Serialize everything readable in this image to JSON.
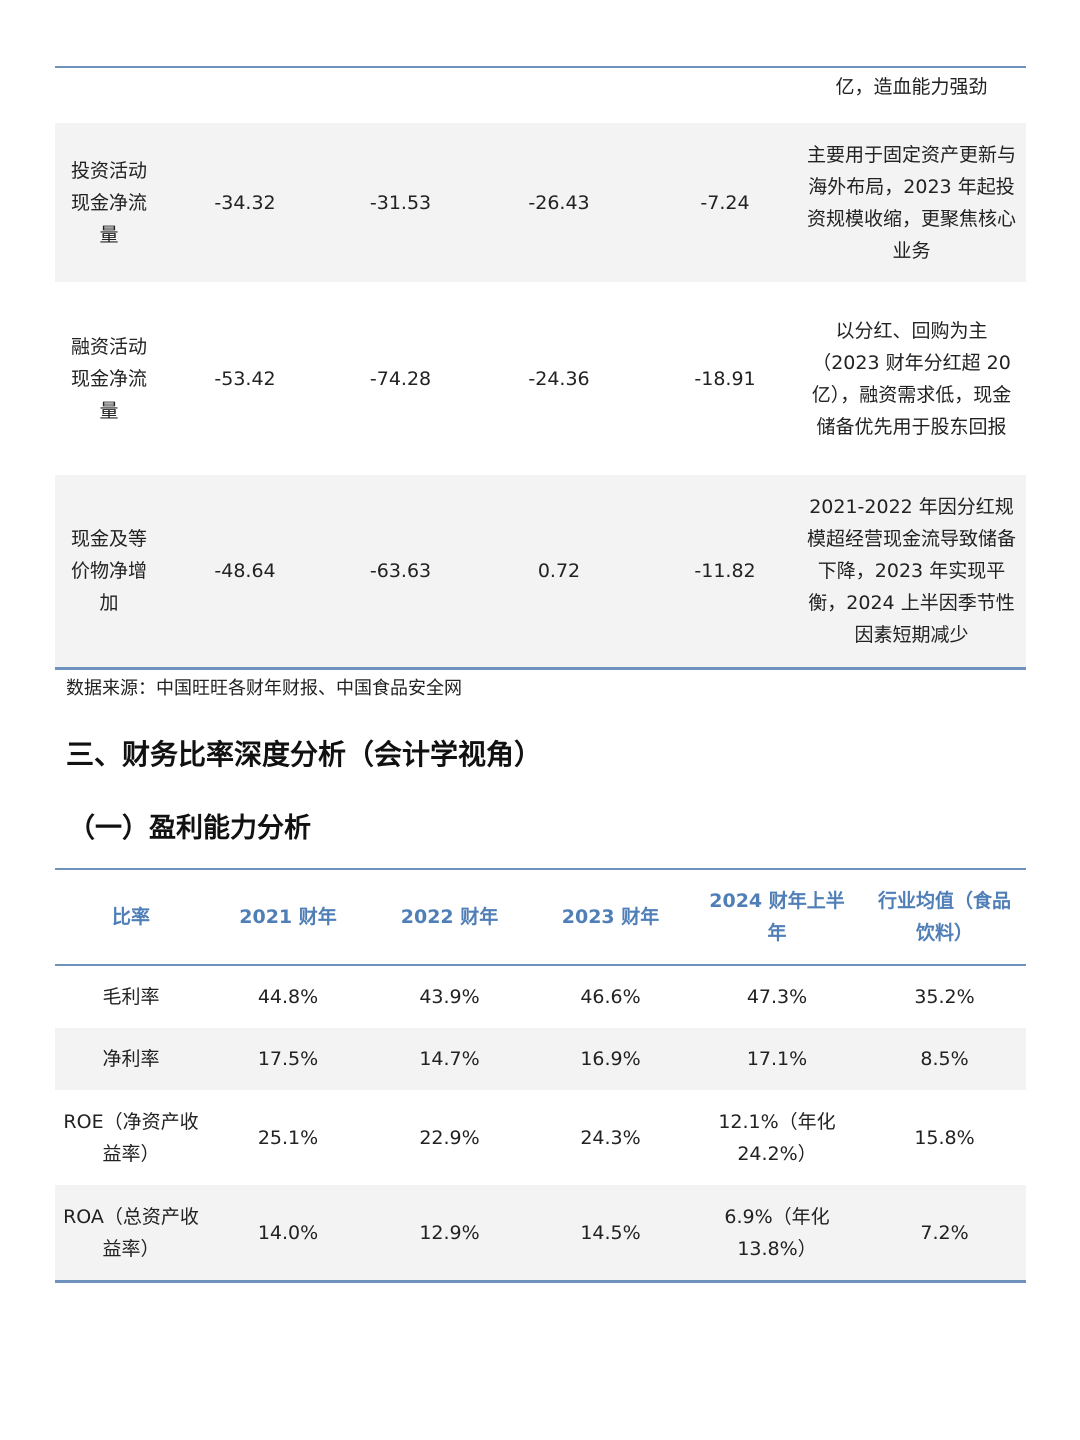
{
  "cashflow_table": {
    "rows": [
      {
        "item": "",
        "v2021": "",
        "v2022": "",
        "v2023": "",
        "v2024h1": "",
        "note": "亿，造血能力强劲"
      },
      {
        "item": "投资活动现金净流量",
        "v2021": "-34.32",
        "v2022": "-31.53",
        "v2023": "-26.43",
        "v2024h1": "-7.24",
        "note": "主要用于固定资产更新与海外布局，2023 年起投资规模收缩，更聚焦核心业务"
      },
      {
        "item": "融资活动现金净流量",
        "v2021": "-53.42",
        "v2022": "-74.28",
        "v2023": "-24.36",
        "v2024h1": "-18.91",
        "note": "以分红、回购为主（2023 财年分红超 20 亿），融资需求低，现金储备优先用于股东回报"
      },
      {
        "item": "现金及等价物净增加",
        "v2021": "-48.64",
        "v2022": "-63.63",
        "v2023": "0.72",
        "v2024h1": "-11.82",
        "note": "2021-2022 年因分红规模超经营现金流导致储备下降，2023 年实现平衡，2024 上半因季节性因素短期减少"
      }
    ]
  },
  "source_note": "数据来源：中国旺旺各财年财报、中国食品安全网",
  "section_heading": "三、财务比率深度分析（会计学视角）",
  "subsection_heading": "（一）盈利能力分析",
  "profit_table": {
    "headers": [
      "比率",
      "2021 财年",
      "2022 财年",
      "2023 财年",
      "2024 财年上半年",
      "行业均值（食品饮料）"
    ],
    "rows": [
      [
        "毛利率",
        "44.8%",
        "43.9%",
        "46.6%",
        "47.3%",
        "35.2%"
      ],
      [
        "净利率",
        "17.5%",
        "14.7%",
        "16.9%",
        "17.1%",
        "8.5%"
      ],
      [
        "ROE（净资产收益率）",
        "25.1%",
        "22.9%",
        "24.3%",
        "12.1%（年化24.2%）",
        "15.8%"
      ],
      [
        "ROA（总资产收益率）",
        "14.0%",
        "12.9%",
        "14.5%",
        "6.9%（年化13.8%）",
        "7.2%"
      ]
    ]
  },
  "colors": {
    "accent": "#6f92bd",
    "header_text": "#4f7fb6",
    "row_shade": "#f3f3f3"
  }
}
